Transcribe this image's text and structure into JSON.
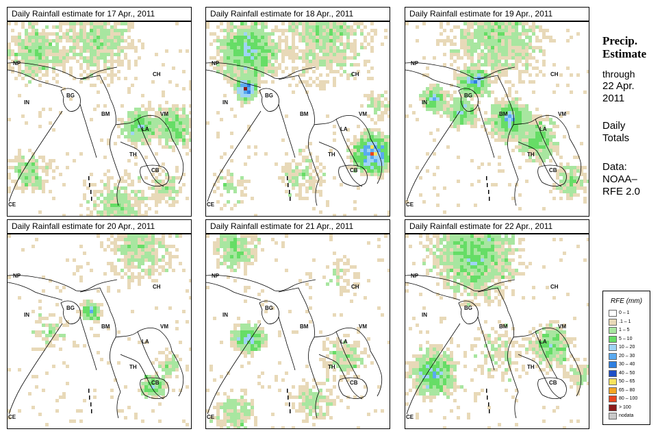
{
  "panels": [
    {
      "title": "Daily Rainfall estimate for  17 Apr., 2011"
    },
    {
      "title": "Daily Rainfall estimate for  18 Apr., 2011"
    },
    {
      "title": "Daily Rainfall estimate for  19 Apr., 2011"
    },
    {
      "title": "Daily Rainfall estimate for  20 Apr., 2011"
    },
    {
      "title": "Daily Rainfall estimate for  21 Apr., 2011"
    },
    {
      "title": "Daily Rainfall estimate for  22 Apr., 2011"
    }
  ],
  "map_labels": {
    "np": "NP",
    "ch": "CH",
    "in": "IN",
    "bg": "BG",
    "bm": "BM",
    "vm": "VM",
    "la": "LA",
    "th": "TH",
    "cb": "CB",
    "ce": "CE"
  },
  "sidebar": {
    "title_line1": "Precip.",
    "title_line2": "Estimate",
    "through": "through",
    "date_line1": "22 Apr.",
    "date_line2": "2011",
    "daily1": "Daily",
    "daily2": "Totals",
    "data1": "Data:",
    "data2": "NOAA–",
    "data3": "RFE 2.0"
  },
  "legend": {
    "title": "RFE (mm)",
    "items": [
      {
        "label": "0 – 1",
        "color": "#ffffff"
      },
      {
        "label": ".1 – 1",
        "color": "#e8d9b8"
      },
      {
        "label": "1 – 5",
        "color": "#a8e6a0"
      },
      {
        "label": "5 – 10",
        "color": "#66dd66"
      },
      {
        "label": "10 – 20",
        "color": "#9fd4f5"
      },
      {
        "label": "20 – 30",
        "color": "#5aaaf0"
      },
      {
        "label": "30 – 40",
        "color": "#2f7fe0"
      },
      {
        "label": "40 – 50",
        "color": "#1e50c8"
      },
      {
        "label": "50 – 65",
        "color": "#f7e35c"
      },
      {
        "label": "65 – 80",
        "color": "#f5a623"
      },
      {
        "label": "80 – 100",
        "color": "#e8451e"
      },
      {
        "label": "> 100",
        "color": "#8b1a1a"
      },
      {
        "label": "nodata",
        "color": "#c8c8c8"
      }
    ]
  }
}
